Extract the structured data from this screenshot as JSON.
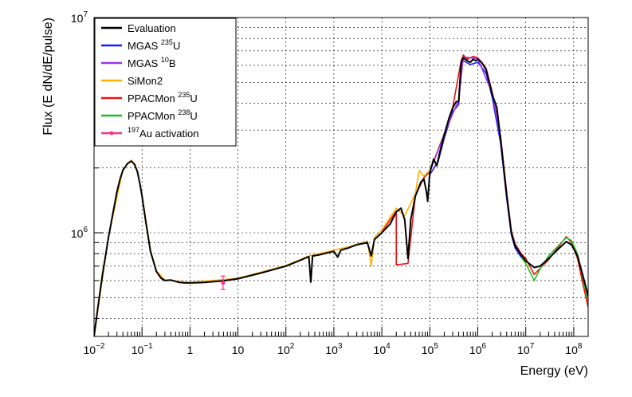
{
  "chart_data": {
    "type": "line",
    "title": "",
    "xlabel": "Energy (eV)",
    "ylabel": "Flux (E dN/dE/pulse)",
    "xscale": "log",
    "yscale": "log",
    "xlim": [
      0.01,
      200000000
    ],
    "ylim": [
      330000,
      10000000
    ],
    "grid": true,
    "legend_position": "top-left",
    "x_tick_labels": [
      {
        "value": 0.01,
        "base": "10",
        "exp": "−2"
      },
      {
        "value": 0.1,
        "base": "10",
        "exp": "−1"
      },
      {
        "value": 1,
        "base": "1",
        "exp": ""
      },
      {
        "value": 10,
        "base": "10",
        "exp": ""
      },
      {
        "value": 100,
        "base": "10",
        "exp": "2"
      },
      {
        "value": 1000,
        "base": "10",
        "exp": "3"
      },
      {
        "value": 10000,
        "base": "10",
        "exp": "4"
      },
      {
        "value": 100000,
        "base": "10",
        "exp": "5"
      },
      {
        "value": 1000000,
        "base": "10",
        "exp": "6"
      },
      {
        "value": 10000000,
        "base": "10",
        "exp": "7"
      },
      {
        "value": 100000000,
        "base": "10",
        "exp": "8"
      }
    ],
    "y_tick_labels": [
      {
        "value": 1000000,
        "base": "10",
        "exp": "6"
      },
      {
        "value": 10000000,
        "base": "10",
        "exp": "7"
      }
    ],
    "series": [
      {
        "name": "Evaluation",
        "sup": "",
        "suffix": "",
        "color": "#000000",
        "style": "line",
        "points": [
          [
            0.01,
            330000
          ],
          [
            0.012,
            450000
          ],
          [
            0.015,
            640000
          ],
          [
            0.02,
            950000
          ],
          [
            0.025,
            1250000
          ],
          [
            0.03,
            1550000
          ],
          [
            0.035,
            1780000
          ],
          [
            0.04,
            1950000
          ],
          [
            0.05,
            2100000
          ],
          [
            0.06,
            2150000
          ],
          [
            0.07,
            2080000
          ],
          [
            0.08,
            1920000
          ],
          [
            0.09,
            1700000
          ],
          [
            0.1,
            1480000
          ],
          [
            0.12,
            1120000
          ],
          [
            0.15,
            820000
          ],
          [
            0.2,
            660000
          ],
          [
            0.25,
            615000
          ],
          [
            0.3,
            600000
          ],
          [
            0.4,
            603000
          ],
          [
            0.5,
            595000
          ],
          [
            0.6,
            588000
          ],
          [
            0.8,
            585000
          ],
          [
            1,
            585000
          ],
          [
            2,
            588000
          ],
          [
            5,
            598000
          ],
          [
            10,
            612000
          ],
          [
            30,
            650000
          ],
          [
            100,
            700000
          ],
          [
            200,
            745000
          ],
          [
            300,
            775000
          ],
          [
            330,
            590000
          ],
          [
            360,
            780000
          ],
          [
            500,
            790000
          ],
          [
            1000,
            820000
          ],
          [
            1200,
            770000
          ],
          [
            1400,
            830000
          ],
          [
            2000,
            850000
          ],
          [
            3000,
            880000
          ],
          [
            5000,
            900000
          ],
          [
            6000,
            780000
          ],
          [
            7000,
            930000
          ],
          [
            10000,
            1000000
          ],
          [
            15000,
            1100000
          ],
          [
            20000,
            1250000
          ],
          [
            25000,
            1300000
          ],
          [
            30000,
            1150000
          ],
          [
            35000,
            760000
          ],
          [
            40000,
            1150000
          ],
          [
            50000,
            1480000
          ],
          [
            65000,
            1720000
          ],
          [
            75000,
            1780000
          ],
          [
            85000,
            1550000
          ],
          [
            90000,
            1400000
          ],
          [
            100000,
            1900000
          ],
          [
            120000,
            2200000
          ],
          [
            140000,
            2050000
          ],
          [
            160000,
            2350000
          ],
          [
            200000,
            2850000
          ],
          [
            250000,
            3400000
          ],
          [
            300000,
            3800000
          ],
          [
            350000,
            4050000
          ],
          [
            400000,
            4100000
          ],
          [
            450000,
            6200000
          ],
          [
            500000,
            6500000
          ],
          [
            600000,
            6300000
          ],
          [
            700000,
            6200000
          ],
          [
            800000,
            6400000
          ],
          [
            900000,
            6300000
          ],
          [
            1000000,
            6400000
          ],
          [
            1200000,
            6200000
          ],
          [
            1500000,
            5700000
          ],
          [
            2000000,
            4400000
          ],
          [
            2500000,
            3800000
          ],
          [
            3000000,
            2700000
          ],
          [
            4000000,
            1500000
          ],
          [
            5000000,
            1000000
          ],
          [
            6000000,
            870000
          ],
          [
            8000000,
            790000
          ],
          [
            10000000,
            740000
          ],
          [
            15000000,
            690000
          ],
          [
            20000000,
            700000
          ],
          [
            30000000,
            760000
          ],
          [
            50000000,
            850000
          ],
          [
            70000000,
            910000
          ],
          [
            90000000,
            880000
          ],
          [
            120000000,
            780000
          ],
          [
            150000000,
            650000
          ],
          [
            200000000,
            510000
          ]
        ]
      },
      {
        "name": "MGAS",
        "sup": "235",
        "suffix": "U",
        "color": "#1a1aff",
        "style": "line",
        "points": [
          [
            100000,
            1860000
          ],
          [
            150000,
            2150000
          ],
          [
            200000,
            2750000
          ],
          [
            300000,
            3650000
          ],
          [
            400000,
            3950000
          ],
          [
            450000,
            6000000
          ],
          [
            500000,
            6300000
          ],
          [
            700000,
            6050000
          ],
          [
            1000000,
            6200000
          ],
          [
            1500000,
            5500000
          ],
          [
            2000000,
            4250000
          ],
          [
            3000000,
            2600000
          ],
          [
            4000000,
            1450000
          ],
          [
            5000000,
            980000
          ],
          [
            6000000,
            850000
          ],
          [
            8000000,
            770000
          ]
        ]
      },
      {
        "name": "MGAS",
        "sup": "10",
        "suffix": "B",
        "color": "#9933ee",
        "style": "line",
        "points": [
          [
            100000,
            1920000
          ],
          [
            200000,
            2880000
          ],
          [
            400000,
            4150000
          ],
          [
            500000,
            6550000
          ],
          [
            1000000,
            6450000
          ],
          [
            2000000,
            4450000
          ],
          [
            3000000,
            2730000
          ]
        ]
      },
      {
        "name": "SiMon2",
        "sup": "",
        "suffix": "",
        "color": "#ffb000",
        "style": "line",
        "points": [
          [
            0.01,
            330000
          ],
          [
            0.02,
            960000
          ],
          [
            0.04,
            1970000
          ],
          [
            0.06,
            2180000
          ],
          [
            0.08,
            1940000
          ],
          [
            0.1,
            1500000
          ],
          [
            0.15,
            830000
          ],
          [
            0.2,
            665000
          ],
          [
            0.3,
            603000
          ],
          [
            1,
            588000
          ],
          [
            10,
            615000
          ],
          [
            100,
            705000
          ],
          [
            300,
            780000
          ],
          [
            1000,
            830000
          ],
          [
            2000,
            860000
          ],
          [
            5000,
            915000
          ],
          [
            6000,
            700000
          ],
          [
            7000,
            950000
          ],
          [
            10000,
            1030000
          ],
          [
            20000,
            1300000
          ],
          [
            30000,
            1200000
          ],
          [
            50000,
            1520000
          ],
          [
            60000,
            1950000
          ],
          [
            75000,
            1830000
          ],
          [
            100000,
            1950000
          ],
          [
            200000,
            2900000
          ],
          [
            300000,
            3850000
          ]
        ]
      },
      {
        "name": "PPACMon",
        "sup": "235",
        "suffix": "U",
        "color": "#ee1111",
        "style": "line",
        "points": [
          [
            10000,
            1010000
          ],
          [
            20000,
            1260000
          ],
          [
            35000,
            720000
          ],
          [
            50000,
            1490000
          ],
          [
            75000,
            1800000
          ],
          [
            100000,
            1920000
          ],
          [
            200000,
            2870000
          ],
          [
            300000,
            3820000
          ],
          [
            450000,
            6300000
          ],
          [
            500000,
            6700000
          ],
          [
            600000,
            6400000
          ],
          [
            800000,
            6600000
          ],
          [
            1000000,
            6500000
          ],
          [
            1500000,
            5800000
          ],
          [
            2000000,
            4500000
          ],
          [
            3000000,
            2800000
          ],
          [
            4000000,
            1550000
          ],
          [
            5000000,
            1020000
          ],
          [
            6000000,
            890000
          ],
          [
            8000000,
            800000
          ],
          [
            10000000,
            760000
          ],
          [
            15000000,
            640000
          ],
          [
            20000,
            710000
          ],
          [
            30000000,
            750000
          ],
          [
            50000000,
            870000
          ],
          [
            70000000,
            960000
          ],
          [
            90000000,
            900000
          ],
          [
            120000000,
            760000
          ],
          [
            150000000,
            600000
          ],
          [
            200000000,
            450000
          ]
        ]
      },
      {
        "name": "PPACMon",
        "sup": "238",
        "suffix": "U",
        "color": "#22bb22",
        "style": "line",
        "points": [
          [
            2000000,
            4300000
          ],
          [
            3000000,
            2650000
          ],
          [
            4000000,
            1480000
          ],
          [
            5000000,
            990000
          ],
          [
            6000000,
            860000
          ],
          [
            8000000,
            770000
          ],
          [
            10000000,
            720000
          ],
          [
            15000000,
            600000
          ],
          [
            20000000,
            680000
          ],
          [
            30000000,
            780000
          ],
          [
            50000000,
            880000
          ],
          [
            70000000,
            950000
          ],
          [
            90000000,
            920000
          ],
          [
            120000000,
            800000
          ],
          [
            150000000,
            640000
          ],
          [
            200000000,
            480000
          ]
        ]
      },
      {
        "name": "",
        "sup": "197",
        "suffix": "Au activation",
        "color": "#ff3388",
        "style": "marker",
        "points": [
          [
            4.9,
            585000
          ]
        ],
        "errors": [
          [
            545000,
            630000
          ]
        ]
      }
    ]
  }
}
